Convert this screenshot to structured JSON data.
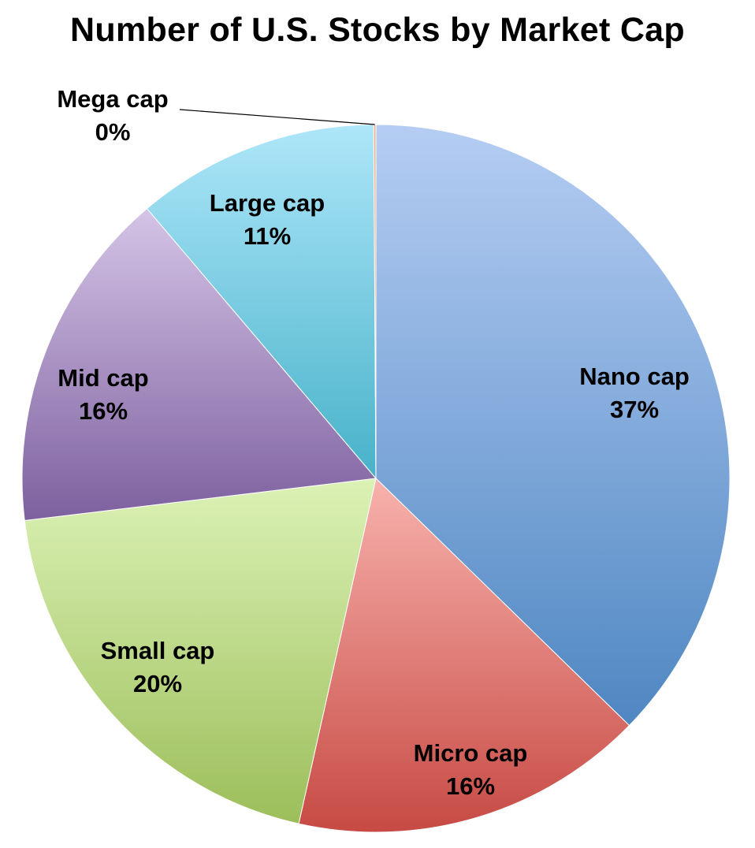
{
  "chart_data": {
    "type": "pie",
    "title": "Number of U.S. Stocks by Market Cap",
    "slices": [
      {
        "label": "Nano cap",
        "pct_label": "37%",
        "value": 37.3,
        "color_light": "#b5cdf3",
        "color_dark": "#4f87c2"
      },
      {
        "label": "Micro cap",
        "pct_label": "16%",
        "value": 16.2,
        "color_light": "#f8b2ad",
        "color_dark": "#c74a44"
      },
      {
        "label": "Small cap",
        "pct_label": "20%",
        "value": 19.6,
        "color_light": "#dcf2b6",
        "color_dark": "#9cbe5a"
      },
      {
        "label": "Mid cap",
        "pct_label": "16%",
        "value": 15.7,
        "color_light": "#d5c4e6",
        "color_dark": "#7d609f"
      },
      {
        "label": "Large cap",
        "pct_label": "11%",
        "value": 11.1,
        "color_light": "#aee6f9",
        "color_dark": "#47b2c9"
      },
      {
        "label": "Mega cap",
        "pct_label": "0%",
        "value": 0.1,
        "color_light": "#f7b184",
        "color_dark": "#e58a4f"
      }
    ],
    "start_angle": "12 o'clock",
    "direction": "clockwise",
    "legend": "none"
  }
}
